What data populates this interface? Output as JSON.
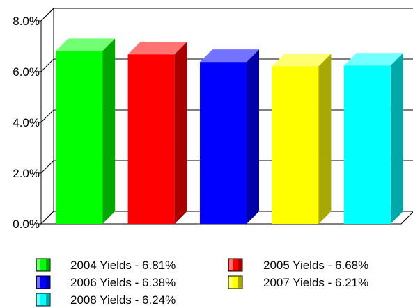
{
  "chart_data": {
    "type": "bar",
    "categories": [
      "2004 Yields",
      "2005 Yields",
      "2006 Yields",
      "2007 Yields",
      "2008 Yields"
    ],
    "values": [
      6.81,
      6.68,
      6.38,
      6.21,
      6.24
    ],
    "colors": [
      "#00ff00",
      "#ff0000",
      "#0000ff",
      "#ffff00",
      "#00ffff"
    ],
    "ylim": [
      0,
      8
    ],
    "yticks": [
      0,
      2,
      4,
      6,
      8
    ],
    "ytick_labels": [
      "0.0%",
      "2.0%",
      "4.0%",
      "6.0%",
      "8.0%"
    ],
    "grid": true,
    "three_d": true,
    "legend": {
      "placement": "bottom",
      "entries": [
        "2004 Yields - 6.81%",
        "2005 Yields - 6.68%",
        "2006 Yields - 6.38%",
        "2007 Yields - 6.21%",
        "2008 Yields - 6.24%"
      ]
    }
  }
}
